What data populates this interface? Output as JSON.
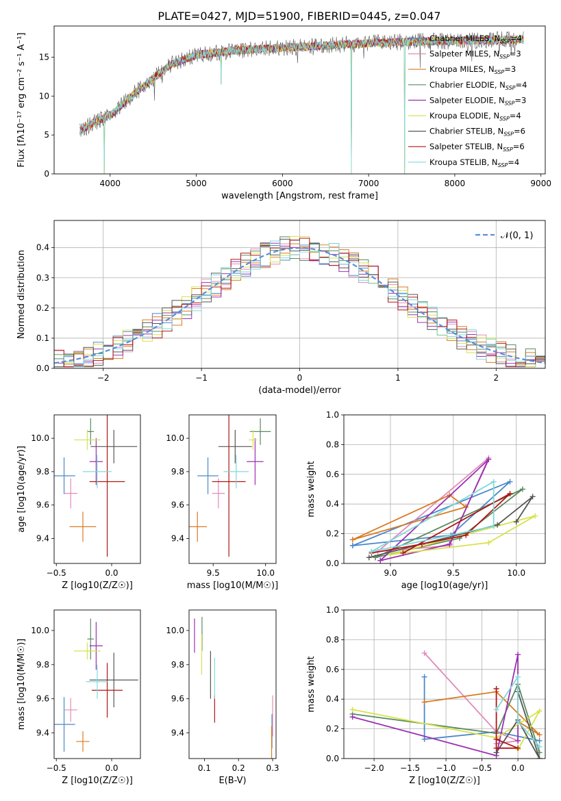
{
  "title": "PLATE=0427, MJD=51900, FIBERID=0445, z=0.047",
  "colors": [
    "#4a87c9",
    "#e28ab9",
    "#d97a20",
    "#5a8a60",
    "#9a30b0",
    "#d6e24a",
    "#555555",
    "#b01515",
    "#80d8d8"
  ],
  "chart_data": [
    {
      "id": "spectrum",
      "type": "line",
      "xlabel": "wavelength [Angstrom, rest frame]",
      "ylabel": "Flux [fλ10⁻¹⁷ erg cm⁻² s⁻¹ A⁻¹]",
      "xlim": [
        3350,
        9050
      ],
      "ylim": [
        0,
        19
      ],
      "xticks": [
        4000,
        5000,
        6000,
        7000,
        8000,
        9000
      ],
      "yticks": [
        0,
        5,
        10,
        15
      ],
      "grid": false,
      "legend_position": "right",
      "continuum": {
        "x": [
          3650,
          3800,
          4000,
          4300,
          4700,
          5000,
          5500,
          6000,
          6500,
          7000,
          7500,
          8000,
          8500,
          8800
        ],
        "y": [
          5.5,
          6.5,
          7.5,
          10.5,
          14.0,
          15.3,
          15.9,
          16.2,
          16.5,
          16.8,
          17.0,
          17.1,
          17.2,
          17.3
        ]
      },
      "dips": [
        {
          "x": 3930,
          "y": 0
        },
        {
          "x": 6800,
          "y": 0
        },
        {
          "x": 7420,
          "y": 0
        },
        {
          "x": 5290,
          "y": 11.5
        }
      ],
      "series": [
        {
          "name": "Chabrier MILES, NSSP=4",
          "label": "Chabrier MILES, N",
          "sub": "SSP",
          "suffix": "=4"
        },
        {
          "name": "Salpeter MILES, NSSP=3",
          "label": "Salpeter MILES, N",
          "sub": "SSP",
          "suffix": "=3"
        },
        {
          "name": "Kroupa MILES, NSSP=3",
          "label": "Kroupa MILES, N",
          "sub": "SSP",
          "suffix": "=3"
        },
        {
          "name": "Chabrier ELODIE, NSSP=4",
          "label": "Chabrier ELODIE, N",
          "sub": "SSP",
          "suffix": "=4"
        },
        {
          "name": "Salpeter ELODIE, NSSP=3",
          "label": "Salpeter ELODIE, N",
          "sub": "SSP",
          "suffix": "=3"
        },
        {
          "name": "Kroupa ELODIE, NSSP=4",
          "label": "Kroupa ELODIE, N",
          "sub": "SSP",
          "suffix": "=4"
        },
        {
          "name": "Chabrier STELIB, NSSP=6",
          "label": "Chabrier STELIB, N",
          "sub": "SSP",
          "suffix": "=6"
        },
        {
          "name": "Salpeter STELIB, NSSP=6",
          "label": "Salpeter STELIB, N",
          "sub": "SSP",
          "suffix": "=6"
        },
        {
          "name": "Kroupa STELIB, NSSP=4",
          "label": "Kroupa STELIB, N",
          "sub": "SSP",
          "suffix": "=4"
        }
      ]
    },
    {
      "id": "residuals",
      "type": "line",
      "xlabel": "(data-model)/error",
      "ylabel": "Normed distribution",
      "xlim": [
        -2.5,
        2.5
      ],
      "ylim": [
        0,
        0.49
      ],
      "xticks": [
        -2,
        -1,
        0,
        1,
        2
      ],
      "yticks": [
        0.0,
        0.1,
        0.2,
        0.3,
        0.4
      ],
      "grid": true,
      "bin_width": 0.1,
      "legend": "𝒩(0, 1)",
      "legend_position": "top-right"
    },
    {
      "id": "z_age",
      "type": "scatter",
      "xlabel": "Z [log10(Z/Z☉)]",
      "ylabel": "age  [log10(age/yr)]",
      "xlim": [
        -0.52,
        0.26
      ],
      "ylim": [
        9.25,
        10.14
      ],
      "xticks": [
        -0.5,
        0.0
      ],
      "yticks": [
        9.4,
        9.6,
        9.8,
        10.0
      ],
      "grid": false,
      "points": [
        {
          "x": -0.43,
          "y": 9.775,
          "xerr": 0.1,
          "yerr": 0.11
        },
        {
          "x": -0.37,
          "y": 9.67,
          "xerr": 0.06,
          "yerr": 0.09
        },
        {
          "x": -0.26,
          "y": 9.47,
          "xerr": 0.12,
          "yerr": 0.09
        },
        {
          "x": -0.19,
          "y": 10.04,
          "xerr": 0.03,
          "yerr": 0.08
        },
        {
          "x": -0.14,
          "y": 9.86,
          "xerr": 0.06,
          "yerr": 0.14
        },
        {
          "x": -0.22,
          "y": 9.99,
          "xerr": 0.12,
          "yerr": 0.06
        },
        {
          "x": 0.02,
          "y": 9.95,
          "xerr": 0.21,
          "yerr": 0.1
        },
        {
          "x": -0.04,
          "y": 9.74,
          "xerr": 0.16,
          "yerr": 0.45
        },
        {
          "x": -0.13,
          "y": 9.8,
          "xerr": 0.13,
          "yerr": 0.1
        }
      ]
    },
    {
      "id": "mass_age",
      "type": "scatter",
      "xlabel": "mass [log10(M/M☉)]",
      "ylabel": "",
      "xlim": [
        9.27,
        10.1
      ],
      "ylim": [
        9.25,
        10.14
      ],
      "xticks": [
        9.5,
        10.0
      ],
      "yticks": [
        9.4,
        9.6,
        9.8,
        10.0
      ],
      "grid": false,
      "points": [
        {
          "x": 9.45,
          "y": 9.775,
          "xerr": 0.1,
          "yerr": 0.11
        },
        {
          "x": 9.55,
          "y": 9.67,
          "xerr": 0.06,
          "yerr": 0.09
        },
        {
          "x": 9.35,
          "y": 9.47,
          "xerr": 0.09,
          "yerr": 0.09
        },
        {
          "x": 9.95,
          "y": 10.04,
          "xerr": 0.1,
          "yerr": 0.08
        },
        {
          "x": 9.9,
          "y": 9.86,
          "xerr": 0.08,
          "yerr": 0.14
        },
        {
          "x": 9.88,
          "y": 9.99,
          "xerr": 0.04,
          "yerr": 0.06
        },
        {
          "x": 9.71,
          "y": 9.95,
          "xerr": 0.16,
          "yerr": 0.1
        },
        {
          "x": 9.65,
          "y": 9.74,
          "xerr": 0.16,
          "yerr": 0.45
        },
        {
          "x": 9.72,
          "y": 9.8,
          "xerr": 0.12,
          "yerr": 0.1
        }
      ]
    },
    {
      "id": "age_weight",
      "type": "line",
      "xlabel": "age  [log10(age/yr)]",
      "ylabel": "mass weight",
      "xlim": [
        8.63,
        10.23
      ],
      "ylim": [
        0,
        1.0
      ],
      "xticks": [
        9.0,
        9.5,
        10.0
      ],
      "yticks": [
        0.0,
        0.2,
        0.4,
        0.6,
        0.8,
        1.0
      ],
      "grid": true,
      "series": [
        {
          "x": [
            8.7,
            9.48,
            9.95,
            8.7
          ],
          "y": [
            0.12,
            0.19,
            0.55,
            0.12
          ]
        },
        {
          "x": [
            8.9,
            9.78,
            9.47,
            8.9
          ],
          "y": [
            0.08,
            0.71,
            0.12,
            0.08
          ]
        },
        {
          "x": [
            8.7,
            9.47,
            9.6,
            8.7
          ],
          "y": [
            0.16,
            0.46,
            0.38,
            0.16
          ]
        },
        {
          "x": [
            8.88,
            9.55,
            10.05,
            8.88
          ],
          "y": [
            0.04,
            0.17,
            0.5,
            0.04
          ]
        },
        {
          "x": [
            8.92,
            9.78,
            9.47,
            8.92
          ],
          "y": [
            0.02,
            0.7,
            0.13,
            0.02
          ]
        },
        {
          "x": [
            9.0,
            9.78,
            10.15,
            9.0
          ],
          "y": [
            0.06,
            0.14,
            0.32,
            0.06
          ]
        },
        {
          "x": [
            8.83,
            9.85,
            10.13,
            10.0
          ],
          "y": [
            0.04,
            0.26,
            0.45,
            0.28
          ]
        },
        {
          "x": [
            8.85,
            9.25,
            9.6,
            9.95,
            9.1
          ],
          "y": [
            0.07,
            0.13,
            0.19,
            0.47,
            0.07
          ]
        },
        {
          "x": [
            8.85,
            9.82,
            9.82,
            8.85
          ],
          "y": [
            0.08,
            0.55,
            0.25,
            0.08
          ]
        }
      ]
    },
    {
      "id": "z_mass",
      "type": "scatter",
      "xlabel": "Z [log10(Z/Z☉)]",
      "ylabel": "mass [log10(M/M☉)]",
      "xlim": [
        -0.52,
        0.26
      ],
      "ylim": [
        9.25,
        10.12
      ],
      "xticks": [
        -0.5,
        0.0
      ],
      "yticks": [
        9.4,
        9.6,
        9.8,
        10.0
      ],
      "grid": false,
      "points": [
        {
          "x": -0.43,
          "y": 9.45,
          "xerr": 0.1,
          "yerr": 0.16
        },
        {
          "x": -0.37,
          "y": 9.535,
          "xerr": 0.06,
          "yerr": 0.07
        },
        {
          "x": -0.26,
          "y": 9.35,
          "xerr": 0.06,
          "yerr": 0.06
        },
        {
          "x": -0.19,
          "y": 9.95,
          "xerr": 0.03,
          "yerr": 0.12
        },
        {
          "x": -0.14,
          "y": 9.91,
          "xerr": 0.06,
          "yerr": 0.14
        },
        {
          "x": -0.22,
          "y": 9.88,
          "xerr": 0.12,
          "yerr": 0.05
        },
        {
          "x": 0.02,
          "y": 9.71,
          "xerr": 0.22,
          "yerr": 0.16
        },
        {
          "x": -0.04,
          "y": 9.65,
          "xerr": 0.14,
          "yerr": 0.16
        },
        {
          "x": -0.13,
          "y": 9.7,
          "xerr": 0.1,
          "yerr": 0.1
        }
      ]
    },
    {
      "id": "ebv_mass",
      "type": "scatter",
      "xlabel": "E(B-V)",
      "ylabel": "",
      "xlim": [
        0.055,
        0.31
      ],
      "ylim": [
        9.25,
        10.12
      ],
      "xticks": [
        0.1,
        0.2,
        0.3
      ],
      "yticks": [
        9.4,
        9.6,
        9.8,
        10.0
      ],
      "grid": false,
      "points": [
        {
          "x": 0.298,
          "y": 9.41,
          "yerr": 0.1
        },
        {
          "x": 0.3,
          "y": 9.5,
          "yerr": 0.12
        },
        {
          "x": 0.297,
          "y": 9.34,
          "yerr": 0.1
        },
        {
          "x": 0.093,
          "y": 9.98,
          "yerr": 0.1
        },
        {
          "x": 0.071,
          "y": 9.97,
          "yerr": 0.1
        },
        {
          "x": 0.092,
          "y": 9.86,
          "yerr": 0.12
        },
        {
          "x": 0.118,
          "y": 9.74,
          "yerr": 0.14
        },
        {
          "x": 0.13,
          "y": 9.54,
          "yerr": 0.08
        },
        {
          "x": 0.13,
          "y": 9.72,
          "yerr": 0.12
        }
      ]
    },
    {
      "id": "z_weight",
      "type": "line",
      "xlabel": "Z [log10(Z/Z☉)]",
      "ylabel": "mass weight",
      "xlim": [
        -2.42,
        0.38
      ],
      "ylim": [
        0,
        1.0
      ],
      "xticks": [
        -2.0,
        -1.5,
        -1.0,
        -0.5,
        0.0
      ],
      "yticks": [
        0.0,
        0.2,
        0.4,
        0.6,
        0.8,
        1.0
      ],
      "grid": true,
      "series": [
        {
          "x": [
            -1.3,
            -1.3,
            -0.3,
            0.3
          ],
          "y": [
            0.55,
            0.13,
            0.18,
            0.12
          ]
        },
        {
          "x": [
            -1.3,
            -0.3,
            0.0,
            -0.3
          ],
          "y": [
            0.71,
            0.18,
            0.12,
            0.1
          ]
        },
        {
          "x": [
            -1.3,
            -0.3,
            0.3,
            0.0
          ],
          "y": [
            0.38,
            0.45,
            0.16,
            0.25
          ]
        },
        {
          "x": [
            -2.3,
            -0.3,
            0.0,
            0.3
          ],
          "y": [
            0.3,
            0.17,
            0.5,
            0.04
          ]
        },
        {
          "x": [
            -2.3,
            -0.3,
            0.0,
            0.0
          ],
          "y": [
            0.28,
            0.02,
            0.7,
            0.12
          ]
        },
        {
          "x": [
            -2.3,
            -0.3,
            0.3,
            0.0
          ],
          "y": [
            0.33,
            0.14,
            0.32,
            0.06
          ]
        },
        {
          "x": [
            -0.3,
            0.0,
            0.3,
            0.0
          ],
          "y": [
            0.04,
            0.26,
            0.0,
            0.45
          ]
        },
        {
          "x": [
            -0.3,
            -0.3,
            0.0,
            -0.3
          ],
          "y": [
            0.47,
            0.07,
            0.07,
            0.13
          ]
        },
        {
          "x": [
            -0.3,
            0.0,
            0.0,
            0.3
          ],
          "y": [
            0.33,
            0.55,
            0.25,
            0.08
          ]
        }
      ]
    }
  ]
}
